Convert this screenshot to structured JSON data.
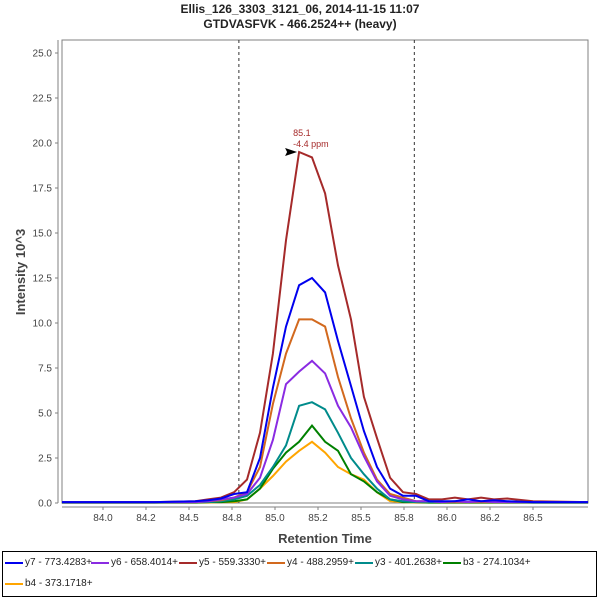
{
  "chart_data": {
    "type": "line",
    "title": "Ellis_126_3303_3121_06, 2014-11-15 11:07",
    "subtitle": "GTDVASFVK - 466.2524++ (heavy)",
    "xlabel": "Retention Time",
    "ylabel": "Intensity 10^3",
    "xlim": [
      83.6,
      86.85
    ],
    "ylim": [
      0,
      25.5
    ],
    "xticks": [
      84.0,
      84.25,
      84.5,
      84.75,
      85.0,
      85.25,
      85.5,
      85.75,
      86.0,
      86.25,
      86.5
    ],
    "xtick_labels": [
      "84.0",
      "84.2",
      "84.5",
      "84.8",
      "85.0",
      "85.2",
      "85.5",
      "85.8",
      "86.0",
      "86.2",
      "86.5"
    ],
    "yticks": [
      0.0,
      2.5,
      5.0,
      7.5,
      10.0,
      12.5,
      15.0,
      17.5,
      20.0,
      22.5,
      25.0
    ],
    "ytick_labels": [
      "0.0",
      "2.5",
      "5.0",
      "7.5",
      "10.0",
      "12.5",
      "15.0",
      "17.5",
      "20.0",
      "22.5",
      "25.0"
    ],
    "grid": false,
    "boundary_lines": [
      84.79,
      85.81
    ],
    "annotation": {
      "x": 85.14,
      "y": 19.5,
      "line1": "85.1",
      "line2": "-4.4 ppm",
      "color": "#a52a2a"
    },
    "x": [
      83.6,
      84.0,
      84.3,
      84.536,
      84.611,
      84.686,
      84.762,
      84.837,
      84.913,
      84.988,
      85.064,
      85.14,
      85.215,
      85.291,
      85.366,
      85.442,
      85.517,
      85.593,
      85.669,
      85.744,
      85.82,
      85.895,
      85.971,
      86.046,
      86.122,
      86.198,
      86.273,
      86.35,
      86.5,
      86.85
    ],
    "series": [
      {
        "name": "y7 - 773.4283+",
        "color": "#0000ee",
        "values": [
          0.05,
          0.05,
          0.05,
          0.1,
          0.15,
          0.25,
          0.5,
          0.6,
          2.5,
          6.4,
          9.8,
          12.1,
          12.5,
          11.7,
          9.0,
          6.5,
          4.0,
          2.0,
          0.8,
          0.4,
          0.4,
          0.1,
          0.1,
          0.1,
          0.2,
          0.1,
          0.15,
          0.1,
          0.05,
          0.05
        ]
      },
      {
        "name": "y6 - 658.4014+",
        "color": "#8a2be2",
        "values": [
          0.05,
          0.05,
          0.05,
          0.05,
          0.1,
          0.2,
          0.3,
          0.5,
          1.4,
          3.5,
          6.6,
          7.3,
          7.9,
          7.2,
          5.4,
          4.2,
          2.6,
          1.2,
          0.4,
          0.2,
          0.1,
          0.1,
          0.05,
          0.1,
          0.05,
          0.1,
          0.05,
          0.05,
          0.05,
          0.05
        ]
      },
      {
        "name": "y5 - 559.3330+",
        "color": "#a52a2a",
        "values": [
          0.05,
          0.05,
          0.05,
          0.1,
          0.2,
          0.3,
          0.6,
          1.3,
          3.9,
          8.3,
          14.6,
          19.5,
          19.2,
          17.2,
          13.2,
          10.2,
          5.9,
          3.6,
          1.4,
          0.6,
          0.5,
          0.2,
          0.2,
          0.3,
          0.2,
          0.3,
          0.2,
          0.25,
          0.1,
          0.05
        ]
      },
      {
        "name": "y4 - 488.2959+",
        "color": "#d2691e",
        "values": [
          0.05,
          0.05,
          0.05,
          0.05,
          0.1,
          0.15,
          0.3,
          0.6,
          2.0,
          5.5,
          8.3,
          10.2,
          10.2,
          9.8,
          7.0,
          4.7,
          2.8,
          1.3,
          0.5,
          0.3,
          0.1,
          0.1,
          0.05,
          0.05,
          0.05,
          0.05,
          0.05,
          0.05,
          0.05,
          0.05
        ]
      },
      {
        "name": "y3 - 401.2638+",
        "color": "#008b8b",
        "values": [
          0.02,
          0.02,
          0.02,
          0.05,
          0.05,
          0.1,
          0.2,
          0.4,
          1.0,
          2.0,
          3.2,
          5.4,
          5.6,
          5.2,
          3.9,
          2.5,
          1.6,
          0.8,
          0.2,
          0.1,
          0.05,
          0.05,
          0.05,
          0.05,
          0.05,
          0.05,
          0.05,
          0.05,
          0.02,
          0.02
        ]
      },
      {
        "name": "b3 - 274.1034+",
        "color": "#008000",
        "values": [
          0.02,
          0.02,
          0.02,
          0.02,
          0.05,
          0.05,
          0.1,
          0.2,
          0.8,
          1.9,
          2.8,
          3.4,
          4.3,
          3.4,
          2.9,
          1.6,
          1.2,
          0.6,
          0.2,
          0.05,
          0.05,
          0.02,
          0.02,
          0.02,
          0.02,
          0.02,
          0.02,
          0.02,
          0.02,
          0.02
        ]
      },
      {
        "name": "b4 - 373.1718+",
        "color": "#ffa500",
        "values": [
          0.02,
          0.02,
          0.02,
          0.02,
          0.02,
          0.05,
          0.05,
          0.2,
          0.8,
          1.5,
          2.3,
          2.9,
          3.4,
          2.8,
          2.0,
          1.6,
          1.3,
          0.6,
          0.1,
          0.05,
          0.02,
          0.02,
          0.02,
          0.02,
          0.02,
          0.02,
          0.02,
          0.02,
          0.02,
          0.02
        ]
      }
    ]
  }
}
